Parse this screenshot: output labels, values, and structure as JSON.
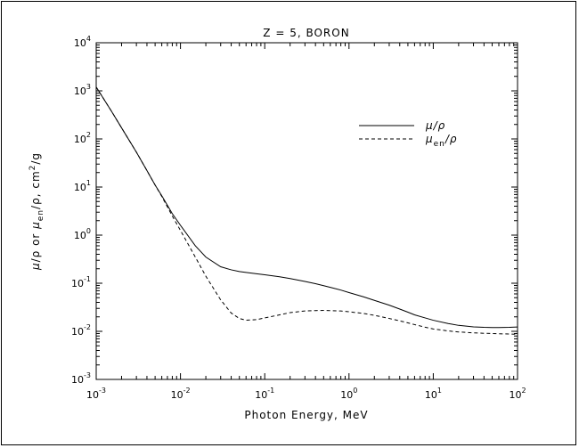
{
  "chart_data": {
    "type": "line",
    "title": "Z =   5,   BORON",
    "xlabel": "Photon Energy, MeV",
    "ylabel_parts": {
      "mu": "μ",
      "slash_rho_or": "/ρ  or  ",
      "mu2": "μ",
      "en_sub": "en",
      "slash_rho_comma": "/ρ,  cm",
      "sq": "2",
      "per_g": "/g"
    },
    "x_scale": "log",
    "y_scale": "log",
    "xlim": [
      0.001,
      100
    ],
    "ylim": [
      0.001,
      10000
    ],
    "x_ticks": [
      {
        "base": "10",
        "exp": "-3",
        "value": 0.001
      },
      {
        "base": "10",
        "exp": "-2",
        "value": 0.01
      },
      {
        "base": "10",
        "exp": "-1",
        "value": 0.1
      },
      {
        "base": "10",
        "exp": "0",
        "value": 1
      },
      {
        "base": "10",
        "exp": "1",
        "value": 10
      },
      {
        "base": "10",
        "exp": "2",
        "value": 100
      }
    ],
    "y_ticks": [
      {
        "base": "10",
        "exp": "-3",
        "value": 0.001
      },
      {
        "base": "10",
        "exp": "-2",
        "value": 0.01
      },
      {
        "base": "10",
        "exp": "-1",
        "value": 0.1
      },
      {
        "base": "10",
        "exp": "0",
        "value": 1
      },
      {
        "base": "10",
        "exp": "1",
        "value": 10
      },
      {
        "base": "10",
        "exp": "2",
        "value": 100
      },
      {
        "base": "10",
        "exp": "3",
        "value": 1000
      },
      {
        "base": "10",
        "exp": "4",
        "value": 10000
      }
    ],
    "legend_position": "top-right",
    "legend": [
      {
        "text": "μ/ρ",
        "style": "solid"
      },
      {
        "text_main": "μ",
        "text_sub": "en",
        "text_tail": "/ρ",
        "style": "dashed"
      }
    ],
    "series": [
      {
        "name": "μ/ρ",
        "style": "solid",
        "x": [
          0.001,
          0.0015,
          0.002,
          0.003,
          0.004,
          0.005,
          0.006,
          0.008,
          0.01,
          0.015,
          0.02,
          0.03,
          0.04,
          0.05,
          0.06,
          0.08,
          0.1,
          0.15,
          0.2,
          0.3,
          0.4,
          0.5,
          0.6,
          0.8,
          1.0,
          1.5,
          2,
          3,
          4,
          5,
          6,
          8,
          10,
          15,
          20,
          30,
          40,
          50,
          60,
          80,
          100
        ],
        "y": [
          1200,
          390,
          170,
          53,
          22,
          11,
          6.6,
          2.8,
          1.6,
          0.6,
          0.35,
          0.22,
          0.19,
          0.175,
          0.168,
          0.157,
          0.15,
          0.136,
          0.125,
          0.109,
          0.098,
          0.089,
          0.082,
          0.072,
          0.064,
          0.052,
          0.044,
          0.035,
          0.029,
          0.025,
          0.022,
          0.019,
          0.017,
          0.0145,
          0.0133,
          0.0124,
          0.0121,
          0.012,
          0.012,
          0.0121,
          0.0123
        ]
      },
      {
        "name": "μen/ρ",
        "style": "dashed",
        "x": [
          0.001,
          0.0015,
          0.002,
          0.003,
          0.004,
          0.005,
          0.006,
          0.008,
          0.01,
          0.015,
          0.02,
          0.03,
          0.04,
          0.05,
          0.06,
          0.08,
          0.1,
          0.15,
          0.2,
          0.3,
          0.4,
          0.5,
          0.6,
          0.8,
          1.0,
          1.5,
          2,
          3,
          4,
          5,
          6,
          8,
          10,
          15,
          20,
          30,
          40,
          50,
          60,
          80,
          100
        ],
        "y": [
          1200,
          390,
          170,
          53,
          22,
          11,
          6.4,
          2.5,
          1.25,
          0.35,
          0.14,
          0.045,
          0.024,
          0.0185,
          0.017,
          0.0175,
          0.019,
          0.022,
          0.0245,
          0.0265,
          0.027,
          0.0272,
          0.027,
          0.0265,
          0.0255,
          0.0235,
          0.0215,
          0.0185,
          0.0165,
          0.015,
          0.0138,
          0.0122,
          0.0112,
          0.0102,
          0.0097,
          0.0093,
          0.0091,
          0.009,
          0.0089,
          0.0088,
          0.0087
        ]
      }
    ]
  }
}
